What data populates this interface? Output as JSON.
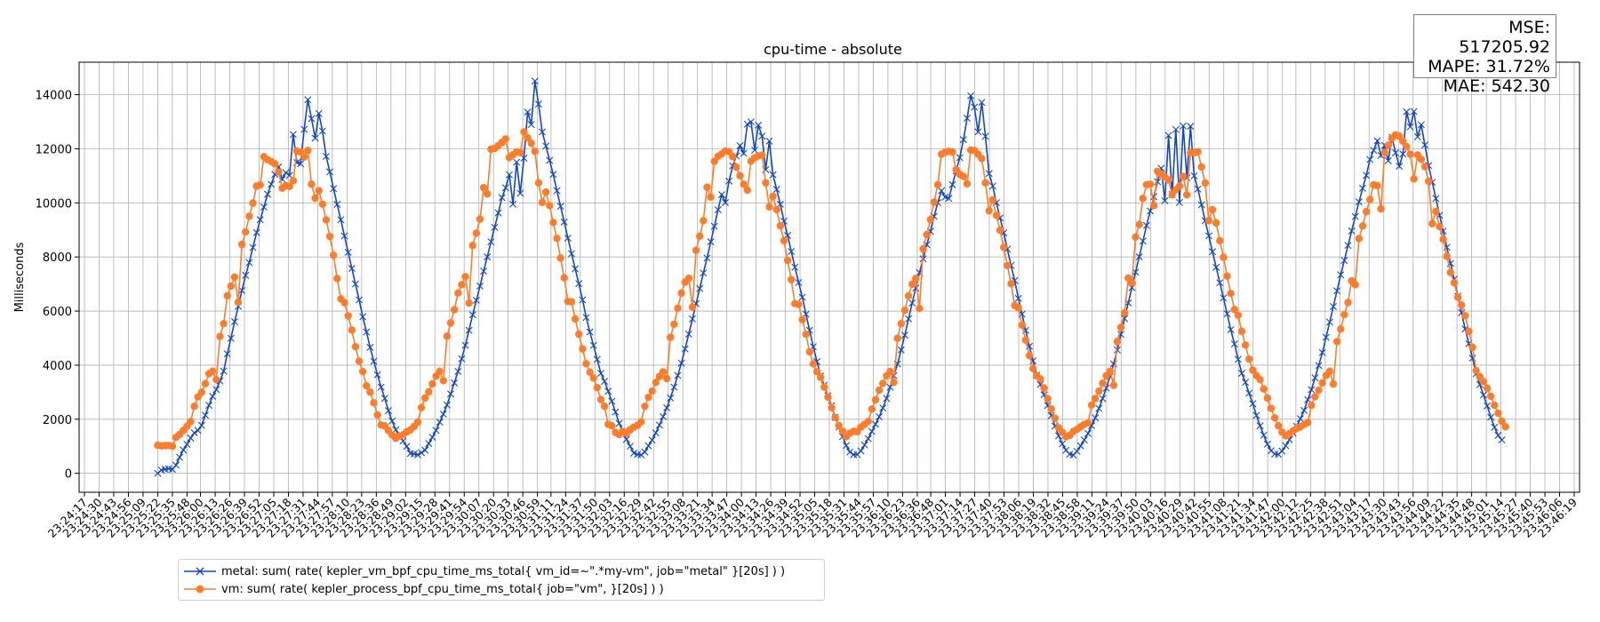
{
  "chart_data": {
    "type": "line",
    "title": "cpu-time - absolute",
    "xlabel": "",
    "ylabel": "Milliseconds",
    "ylim": [
      -700,
      15200
    ],
    "yticks": [
      0,
      2000,
      4000,
      6000,
      8000,
      10000,
      12000,
      14000
    ],
    "grid": true,
    "legend_position": "bottom-left",
    "x_start": "23:24:17",
    "x_end": "23:46:19",
    "xticks": [
      "23:24:17",
      "23:24:30",
      "23:24:43",
      "23:24:56",
      "23:25:09",
      "23:25:22",
      "23:25:35",
      "23:25:48",
      "23:26:00",
      "23:26:13",
      "23:26:26",
      "23:26:39",
      "23:26:52",
      "23:27:05",
      "23:27:18",
      "23:27:31",
      "23:27:44",
      "23:27:57",
      "23:28:10",
      "23:28:23",
      "23:28:36",
      "23:28:49",
      "23:29:02",
      "23:29:15",
      "23:29:28",
      "23:29:41",
      "23:29:54",
      "23:30:07",
      "23:30:20",
      "23:30:33",
      "23:30:46",
      "23:30:59",
      "23:31:11",
      "23:31:24",
      "23:31:37",
      "23:31:50",
      "23:32:03",
      "23:32:16",
      "23:32:29",
      "23:32:42",
      "23:32:55",
      "23:33:08",
      "23:33:21",
      "23:33:34",
      "23:33:47",
      "23:34:00",
      "23:34:13",
      "23:34:26",
      "23:34:39",
      "23:34:52",
      "23:35:05",
      "23:35:18",
      "23:35:31",
      "23:35:44",
      "23:35:57",
      "23:36:10",
      "23:36:23",
      "23:36:36",
      "23:36:48",
      "23:37:01",
      "23:37:14",
      "23:37:27",
      "23:37:40",
      "23:37:53",
      "23:38:06",
      "23:38:19",
      "23:38:32",
      "23:38:45",
      "23:38:58",
      "23:39:11",
      "23:39:24",
      "23:39:37",
      "23:39:50",
      "23:40:03",
      "23:40:16",
      "23:40:29",
      "23:40:42",
      "23:40:55",
      "23:41:08",
      "23:41:21",
      "23:41:34",
      "23:41:47",
      "23:42:00",
      "23:42:12",
      "23:42:25",
      "23:42:38",
      "23:42:51",
      "23:43:04",
      "23:43:17",
      "23:43:30",
      "23:43:43",
      "23:43:56",
      "23:44:09",
      "23:44:22",
      "23:44:35",
      "23:44:48",
      "23:45:01",
      "23:45:14",
      "23:45:27",
      "23:45:40",
      "23:45:53",
      "23:46:06",
      "23:46:19"
    ],
    "series": [
      {
        "name": "metal: sum( rate( kepler_vm_bpf_cpu_time_ms_total{ vm_id=~\".*my-vm\", job=\"metal\" }[20s] ) )",
        "color": "#1147c5",
        "marker": "x",
        "x_start": "23:25:22",
        "x_step_seconds": 3.25,
        "values": [
          0,
          122,
          150,
          170,
          147,
          301,
          593,
          863,
          1074,
          1305,
          1502,
          1583,
          1775,
          2151,
          2515,
          2848,
          3099,
          3414,
          3780,
          4420,
          4992,
          5606,
          6174,
          6761,
          7323,
          7792,
          8350,
          8900,
          9376,
          9845,
          10319,
          10689,
          11055,
          11326,
          10868,
          11119,
          11017,
          12529,
          11488,
          11447,
          12716,
          13812,
          13111,
          12392,
          13304,
          12654,
          11718,
          11146,
          10526,
          9945,
          9374,
          8778,
          8172,
          7577,
          6998,
          6414,
          5788,
          5224,
          4658,
          4141,
          3646,
          3189,
          2770,
          2318,
          1935,
          1614,
          1366,
          1195,
          999,
          732,
          720,
          688,
          763,
          855,
          1104,
          1334,
          1587,
          1894,
          2193,
          2527,
          2934,
          3342,
          3768,
          4235,
          4734,
          5289,
          5861,
          6398,
          6921,
          7476,
          8003,
          8560,
          9095,
          9629,
          10193,
          10560,
          11040,
          9950,
          11502,
          10356,
          11657,
          13356,
          12896,
          14501,
          13651,
          12620,
          12100,
          11571,
          11051,
          10449,
          9874,
          9292,
          8697,
          8120,
          7562,
          7014,
          6413,
          5763,
          5228,
          4731,
          4211,
          3698,
          3402,
          3037,
          2668,
          2268,
          1847,
          1531,
          1257,
          1002,
          746,
          698,
          682,
          788,
          1018,
          1233,
          1499,
          1785,
          2096,
          2424,
          2787,
          3188,
          3618,
          4073,
          4602,
          5148,
          5710,
          6275,
          6834,
          7406,
          7958,
          8559,
          9135,
          9745,
          10302,
          10010,
          10804,
          11367,
          11732,
          12113,
          11832,
          12909,
          12997,
          11948,
          12873,
          12466,
          11226,
          12285,
          11039,
          10501,
          9947,
          9324,
          8795,
          8202,
          7624,
          7055,
          6511,
          5884,
          5290,
          4680,
          4128,
          3596,
          3258,
          2867,
          2501,
          2069,
          1716,
          1358,
          1031,
          785,
          689,
          696,
          828,
          1049,
          1285,
          1550,
          1815,
          2093,
          2416,
          2770,
          3185,
          3612,
          4045,
          4564,
          5108,
          5714,
          6298,
          6850,
          7419,
          7930,
          8454,
          8949,
          9501,
          10008,
          10448,
          10211,
          10164,
          10676,
          11179,
          11673,
          12339,
          13131,
          13962,
          13540,
          12624,
          13713,
          12460,
          11084,
          10619,
          10004,
          9441,
          8890,
          8289,
          7685,
          7128,
          6469,
          5886,
          5284,
          4698,
          4158,
          3628,
          3285,
          2904,
          2512,
          2135,
          1743,
          1387,
          1091,
          853,
          705,
          675,
          813,
          1015,
          1234,
          1474,
          1763,
          2052,
          2401,
          2767,
          3152,
          3579,
          4048,
          4561,
          5137,
          5722,
          6303,
          6864,
          7440,
          8004,
          8584,
          9162,
          9701,
          10226,
          10781,
          11280,
          10081,
          12491,
          10309,
          12712,
          10014,
          12843,
          10924,
          12829,
          10999,
          10511,
          9929,
          9338,
          8782,
          8193,
          7617,
          7047,
          6482,
          5899,
          5313,
          4782,
          4216,
          3701,
          3364,
          2963,
          2574,
          2140,
          1757,
          1410,
          1079,
          838,
          712,
          701,
          823,
          1020,
          1241,
          1487,
          1736,
          2020,
          2325,
          2721,
          3093,
          3531,
          3987,
          4465,
          5028,
          5591,
          6167,
          6747,
          7339,
          7870,
          8427,
          8963,
          9496,
          10037,
          10540,
          11015,
          11601,
          11943,
          12291,
          11751,
          12124,
          11559,
          12426,
          11850,
          11356,
          11807,
          13367,
          12810,
          13376,
          12440,
          12890,
          12138,
          11380,
          10759,
          10161,
          9541,
          8960,
          8357,
          7760,
          7176,
          6549,
          5939,
          5337,
          4796,
          4255,
          3687,
          3281,
          2897,
          2492,
          2075,
          1702,
          1405,
          1233
        ]
      },
      {
        "name": "vm: sum( rate( kepler_process_bpf_cpu_time_ms_total{ job=\"vm\", }[20s] ) )",
        "color": "#ff7c2a",
        "marker": "o",
        "x_start": "23:25:22",
        "x_step_seconds": 3.25,
        "values": [
          1038,
          1015,
          1026,
          1032,
          1001,
          1330,
          1439,
          1584,
          1735,
          1916,
          2476,
          2825,
          2996,
          3316,
          3683,
          3773,
          3466,
          5060,
          5532,
          6564,
          6917,
          7256,
          6322,
          8461,
          8927,
          9504,
          9990,
          10617,
          10661,
          11707,
          11597,
          11526,
          11442,
          11141,
          10541,
          10640,
          10607,
          10817,
          11914,
          11881,
          11697,
          11939,
          10688,
          10174,
          10452,
          9949,
          9370,
          8756,
          8063,
          7203,
          6452,
          6308,
          5821,
          5296,
          4681,
          4149,
          3763,
          3235,
          3004,
          2609,
          2157,
          1787,
          1752,
          1582,
          1420,
          1296,
          1380,
          1426,
          1531,
          1606,
          1732,
          1891,
          2432,
          2784,
          3012,
          3308,
          3593,
          3774,
          3425,
          5068,
          5561,
          6049,
          6665,
          6973,
          7272,
          6296,
          8425,
          8879,
          9395,
          10563,
          10332,
          11987,
          12013,
          12119,
          12235,
          12362,
          11670,
          11778,
          11883,
          11852,
          12624,
          12406,
          12202,
          11905,
          10740,
          10015,
          10396,
          9901,
          9274,
          8685,
          7956,
          7227,
          6358,
          6343,
          5708,
          5143,
          4600,
          4052,
          3741,
          3526,
          3167,
          2729,
          2478,
          1811,
          1758,
          1509,
          1433,
          1549,
          1476,
          1611,
          1706,
          1772,
          1905,
          2477,
          2810,
          3039,
          3363,
          3578,
          3751,
          3503,
          5030,
          5512,
          6103,
          6663,
          7070,
          7209,
          6145,
          8246,
          8769,
          9342,
          10576,
          10212,
          11533,
          11719,
          11810,
          11912,
          11893,
          11703,
          11318,
          11004,
          10689,
          10467,
          11544,
          11667,
          11736,
          11764,
          10740,
          9851,
          10242,
          9749,
          9148,
          8602,
          7871,
          7163,
          6274,
          6245,
          5682,
          5141,
          4493,
          4044,
          3759,
          3545,
          3188,
          2817,
          2428,
          2065,
          1762,
          1553,
          1352,
          1484,
          1553,
          1538,
          1707,
          1813,
          1918,
          2373,
          2717,
          3073,
          3323,
          3602,
          3766,
          3363,
          4992,
          5534,
          6028,
          6562,
          6993,
          7206,
          6094,
          8297,
          8828,
          9381,
          10028,
          10672,
          11800,
          11867,
          11905,
          11876,
          11219,
          11053,
          10979,
          10705,
          11950,
          11935,
          11795,
          11639,
          10740,
          9705,
          10108,
          9537,
          8989,
          8354,
          7679,
          7012,
          6205,
          6121,
          5478,
          4923,
          4353,
          3874,
          3610,
          3490,
          3156,
          2758,
          2378,
          2039,
          1683,
          1518,
          1361,
          1404,
          1546,
          1623,
          1719,
          1812,
          1859,
          2525,
          2766,
          3039,
          3331,
          3608,
          3773,
          3255,
          4872,
          5398,
          5934,
          7217,
          7041,
          8737,
          9196,
          10162,
          10669,
          10687,
          9900,
          11167,
          11063,
          10956,
          10846,
          10297,
          10488,
          10618,
          10979,
          10296,
          11852,
          11850,
          11888,
          11324,
          10733,
          9347,
          9746,
          9258,
          8601,
          7986,
          7289,
          6652,
          6055,
          5845,
          5252,
          4744,
          4222,
          3817,
          3616,
          3464,
          3120,
          2782,
          2404,
          2050,
          1757,
          1524,
          1386,
          1468,
          1570,
          1659,
          1721,
          1807,
          1876,
          2511,
          2831,
          3073,
          3345,
          3615,
          3773,
          3301,
          4870,
          5335,
          5868,
          6316,
          7117,
          6972,
          8676,
          9146,
          9673,
          10121,
          10664,
          10638,
          9777,
          11863,
          12129,
          12391,
          12514,
          12463,
          12275,
          12078,
          11797,
          10885,
          11769,
          11610,
          11335,
          10800,
          9228,
          9687,
          9121,
          8650,
          8026,
          7424,
          7045,
          6508,
          6219,
          5826,
          5245,
          4657,
          3795,
          3570,
          3392,
          3149,
          2849,
          2516,
          2221,
          1926,
          1723
        ]
      }
    ]
  },
  "metrics": {
    "mse": "MSE: 517205.92",
    "mape": "MAPE: 31.72%",
    "mae": "MAE: 542.30"
  }
}
